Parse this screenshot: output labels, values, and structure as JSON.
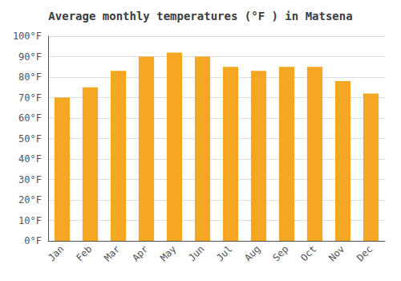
{
  "chart_data": {
    "type": "bar",
    "title": "Average monthly temperatures (°F ) in Matsena",
    "categories": [
      "Jan",
      "Feb",
      "Mar",
      "Apr",
      "May",
      "Jun",
      "Jul",
      "Aug",
      "Sep",
      "Oct",
      "Nov",
      "Dec"
    ],
    "values": [
      70,
      75,
      83,
      90,
      92,
      90,
      85,
      83,
      85,
      85,
      78,
      72
    ],
    "color": "#F5A623",
    "ylim": [
      0,
      100
    ],
    "yticks": [
      {
        "value": 0,
        "label": "0°F"
      },
      {
        "value": 10,
        "label": "10°F"
      },
      {
        "value": 20,
        "label": "20°F"
      },
      {
        "value": 30,
        "label": "30°F"
      },
      {
        "value": 40,
        "label": "40°F"
      },
      {
        "value": 50,
        "label": "50°F"
      },
      {
        "value": 60,
        "label": "60°F"
      },
      {
        "value": 70,
        "label": "70°F"
      },
      {
        "value": 80,
        "label": "80°F"
      },
      {
        "value": 90,
        "label": "90°F"
      },
      {
        "value": 100,
        "label": "100°F"
      }
    ],
    "grid": true
  }
}
